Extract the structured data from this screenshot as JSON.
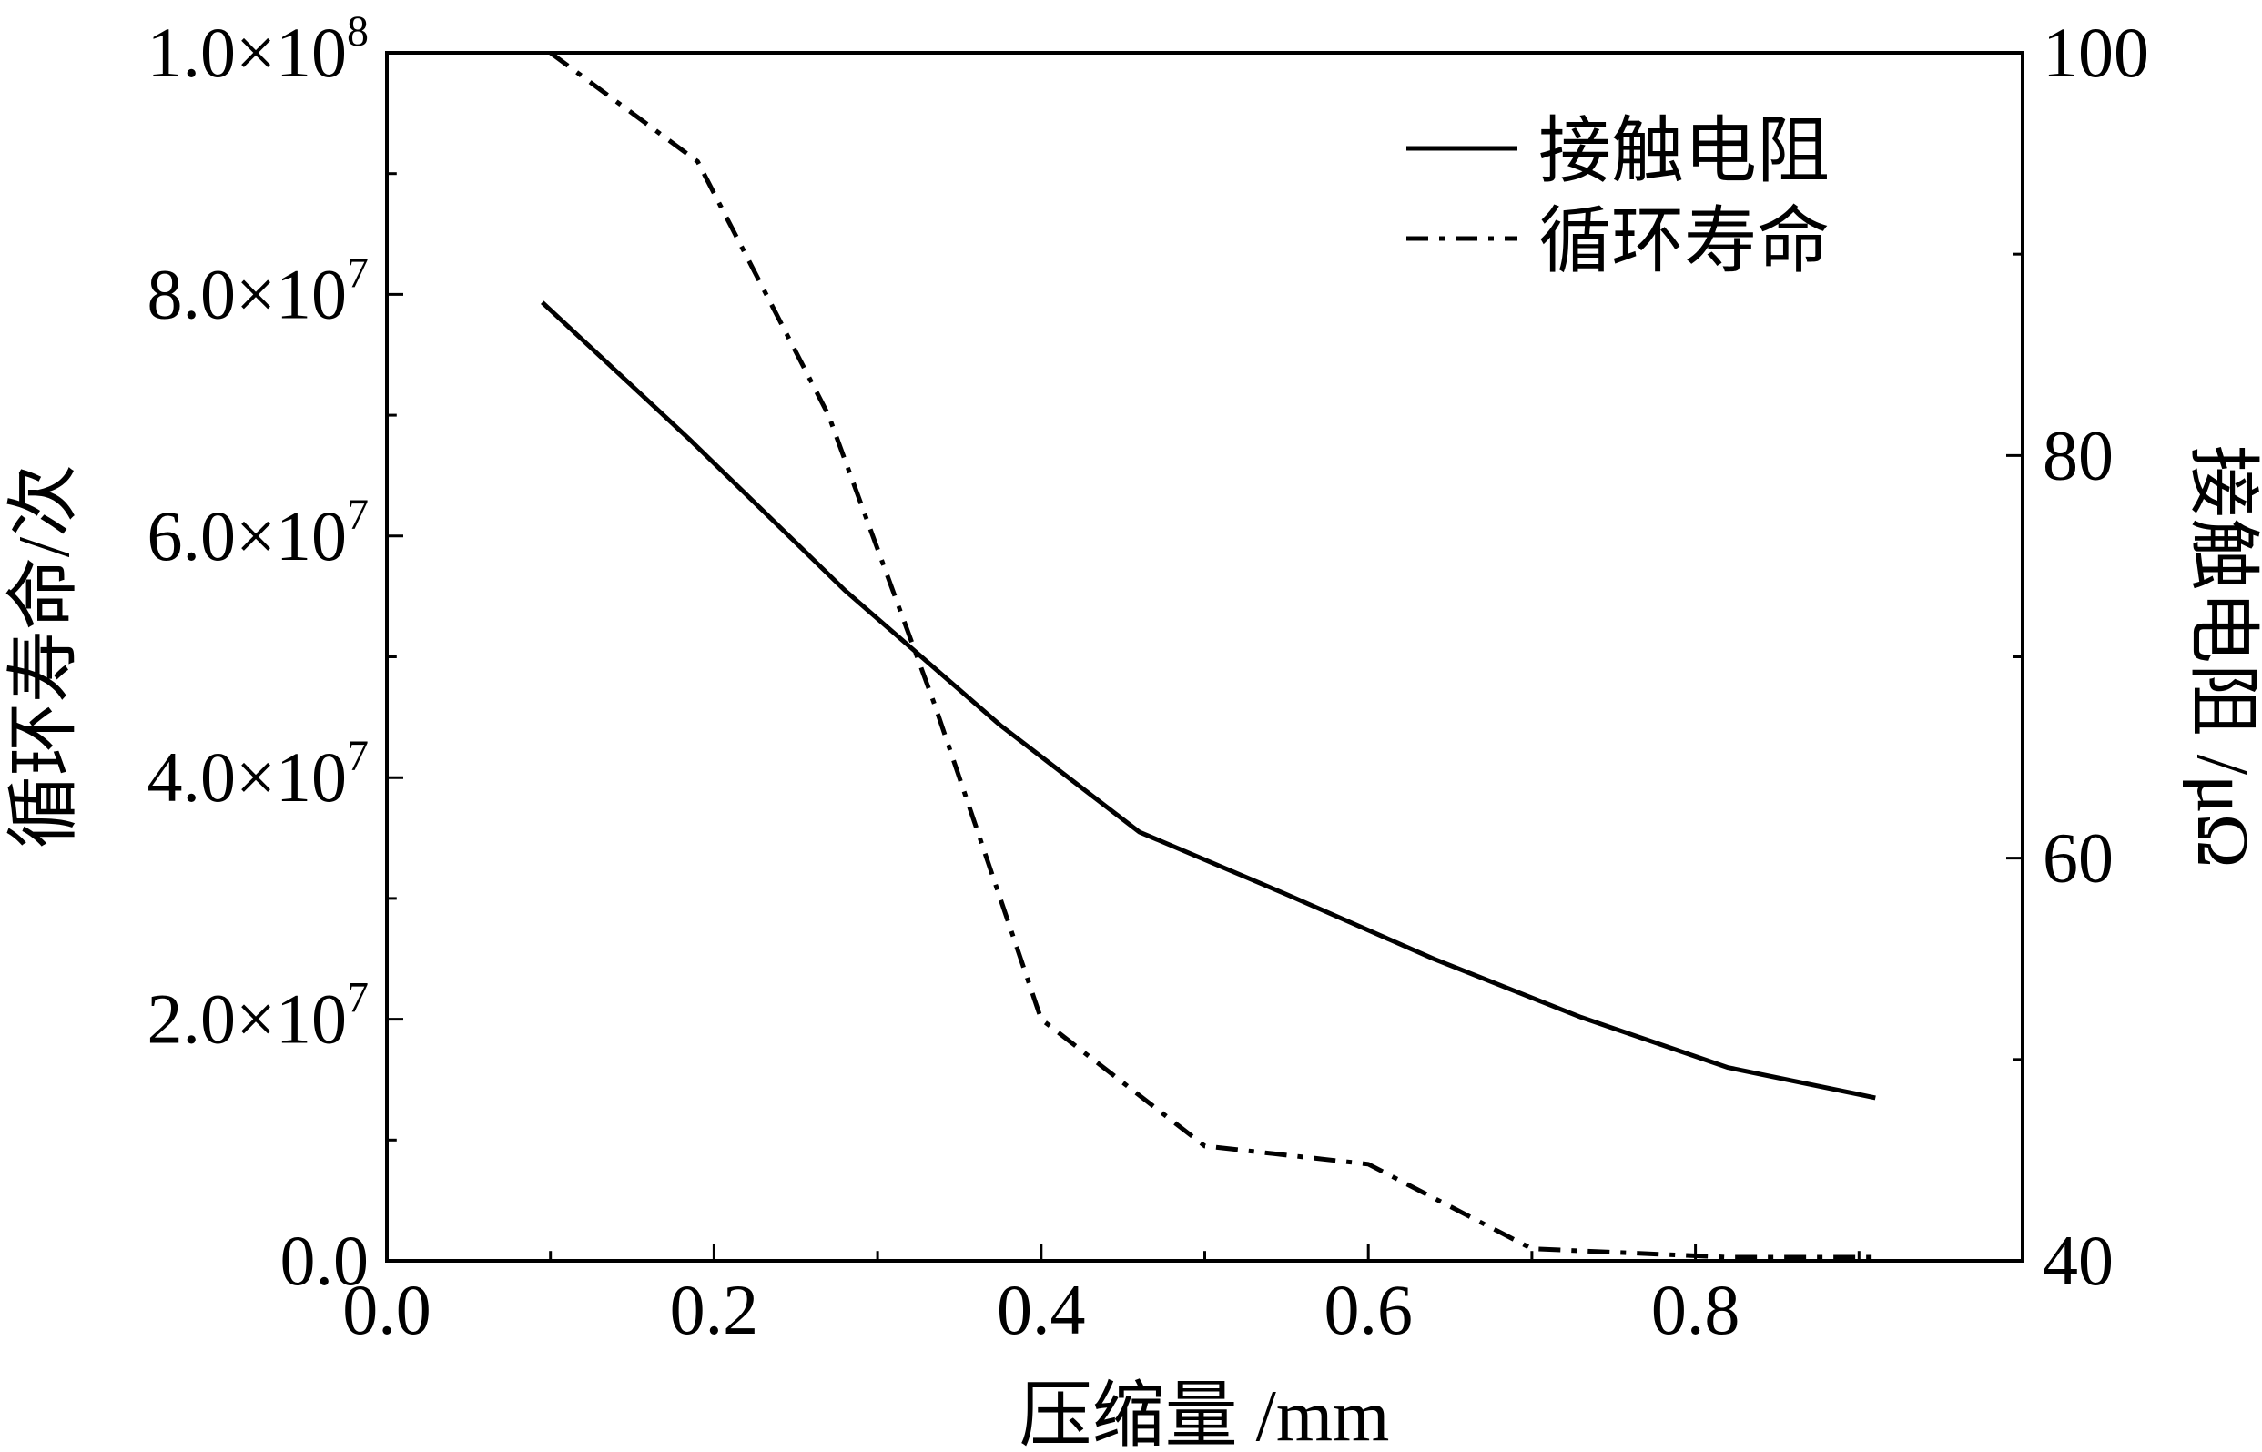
{
  "chart_data": {
    "type": "line",
    "xlabel": "压缩量 /mm",
    "ylabel_left": "循环寿命/次",
    "ylabel_right": "接触电阻 /μΩ",
    "xlim": [
      0.0,
      1.0
    ],
    "ylim_left": [
      0,
      100000000
    ],
    "ylim_right": [
      40,
      100
    ],
    "x_ticks": [
      "0.0",
      "0.2",
      "0.4",
      "0.6",
      "0.8"
    ],
    "x_tick_values": [
      0.0,
      0.2,
      0.4,
      0.6,
      0.8
    ],
    "y_left_ticks": [
      {
        "value": 0,
        "mantissa": "0.0",
        "exp": ""
      },
      {
        "value": 20000000,
        "mantissa": "2.0×10",
        "exp": "7"
      },
      {
        "value": 40000000,
        "mantissa": "4.0×10",
        "exp": "7"
      },
      {
        "value": 60000000,
        "mantissa": "6.0×10",
        "exp": "7"
      },
      {
        "value": 80000000,
        "mantissa": "8.0×10",
        "exp": "7"
      },
      {
        "value": 100000000,
        "mantissa": "1.0×10",
        "exp": "8"
      }
    ],
    "y_right_ticks": [
      "40",
      "60",
      "80",
      "100"
    ],
    "y_right_tick_values": [
      40,
      60,
      80,
      100
    ],
    "legend_position": "top-right",
    "series": [
      {
        "name": "接触电阻",
        "axis": "right",
        "style": "solid",
        "x": [
          0.095,
          0.14,
          0.185,
          0.28,
          0.375,
          0.46,
          0.55,
          0.64,
          0.73,
          0.82,
          0.91
        ],
        "y": [
          87.6,
          84.2,
          80.8,
          73.3,
          66.6,
          61.3,
          58.2,
          55.0,
          52.1,
          49.6,
          48.1
        ]
      },
      {
        "name": "循环寿命",
        "axis": "left",
        "style": "dashdot",
        "x": [
          0.1,
          0.19,
          0.27,
          0.335,
          0.4,
          0.5,
          0.6,
          0.7,
          0.82,
          0.91
        ],
        "y": [
          100000000,
          91000000,
          70000000,
          46000000,
          20000000,
          9500000,
          8000000,
          1000000,
          300000,
          300000
        ]
      }
    ]
  }
}
